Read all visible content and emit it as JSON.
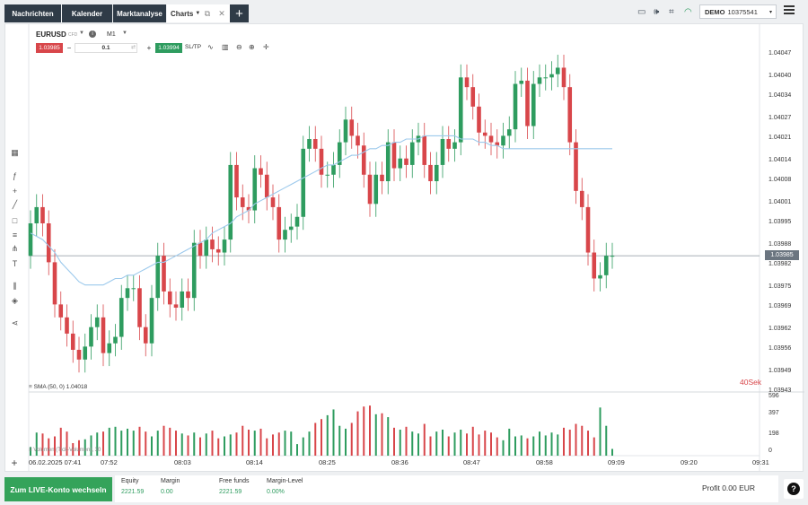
{
  "tabs": [
    {
      "label": "Nachrichten"
    },
    {
      "label": "Kalender"
    },
    {
      "label": "Marktanalyse"
    },
    {
      "label": "Charts"
    }
  ],
  "account": {
    "mode": "DEMO",
    "number": "10375541"
  },
  "chart": {
    "symbol": "EURUSD",
    "symbol_type": "CFD",
    "timeframe": "M1",
    "sell_price": "1.03985",
    "buy_price": "1.03994",
    "volume": "0.1",
    "sltp_label": "SL/TP",
    "current_price": "1.03985",
    "countdown": "40Sek",
    "sma_label": "SMA (50, 0) 1.04018",
    "volume_label": "Volumen (Tick-Volumen), 30",
    "price_axis": [
      "1.04047",
      "1.04040",
      "1.04034",
      "1.04027",
      "1.04021",
      "1.04014",
      "1.04008",
      "1.04001",
      "1.03995",
      "1.03988",
      "1.03982",
      "1.03975",
      "1.03969",
      "1.03962",
      "1.03956",
      "1.03949",
      "1.03943"
    ],
    "volume_axis": [
      "596",
      "397",
      "198",
      "0"
    ],
    "time_axis": [
      "06.02.2025 07:41",
      "07:52",
      "08:03",
      "08:14",
      "08:25",
      "08:36",
      "08:47",
      "08:58",
      "09:09",
      "09:20",
      "09:31"
    ],
    "colors": {
      "up": "#2e9c5f",
      "down": "#d8464a",
      "sma": "#9cc9ec"
    }
  },
  "chart_data": {
    "type": "candlestick",
    "xlabel": "",
    "ylabel": "",
    "ylim": [
      1.03943,
      1.0405
    ],
    "x": [
      "07:41",
      "07:42",
      "07:43",
      "07:44",
      "07:45",
      "07:46",
      "07:47",
      "07:48",
      "07:49",
      "07:50",
      "07:51",
      "07:52",
      "07:53",
      "07:54",
      "07:55",
      "07:56",
      "07:57",
      "07:58",
      "07:59",
      "08:00",
      "08:01",
      "08:02",
      "08:03",
      "08:04",
      "08:05",
      "08:06",
      "08:07",
      "08:08",
      "08:09",
      "08:10",
      "08:11",
      "08:12",
      "08:13",
      "08:14",
      "08:15",
      "08:16",
      "08:17",
      "08:18",
      "08:19",
      "08:20",
      "08:21",
      "08:22",
      "08:23",
      "08:24",
      "08:25",
      "08:26",
      "08:27",
      "08:28",
      "08:29",
      "08:30",
      "08:31",
      "08:32",
      "08:33",
      "08:34",
      "08:35",
      "08:36",
      "08:37",
      "08:38",
      "08:39",
      "08:40",
      "08:41",
      "08:42",
      "08:43",
      "08:44",
      "08:45",
      "08:46",
      "08:47",
      "08:48",
      "08:49",
      "08:50",
      "08:51",
      "08:52",
      "08:53",
      "08:54",
      "08:55",
      "08:56",
      "08:57",
      "08:58",
      "08:59",
      "09:00",
      "09:01",
      "09:02",
      "09:03",
      "09:04",
      "09:05",
      "09:06",
      "09:07",
      "09:08",
      "09:09",
      "09:10",
      "09:11",
      "09:12",
      "09:13",
      "09:14",
      "09:15",
      "09:16",
      "09:17"
    ],
    "open": [
      1.03985,
      1.03995,
      1.04,
      1.03995,
      1.03983,
      1.0397,
      1.03966,
      1.03961,
      1.03956,
      1.03953,
      1.03957,
      1.03963,
      1.03966,
      1.03955,
      1.03958,
      1.0396,
      1.03972,
      1.03975,
      1.03975,
      1.03963,
      1.03958,
      1.03972,
      1.03985,
      1.03974,
      1.0397,
      1.03969,
      1.03974,
      1.03972,
      1.03989,
      1.03985,
      1.0399,
      1.03987,
      1.03986,
      1.0399,
      1.04013,
      1.04003,
      1.04,
      1.03999,
      1.04012,
      1.0401,
      1.04003,
      1.04,
      1.0399,
      1.03993,
      1.03994,
      1.03997,
      1.04018,
      1.04021,
      1.04018,
      1.0401,
      1.0401,
      1.04013,
      1.0402,
      1.04027,
      1.04022,
      1.04019,
      1.0401,
      1.04001,
      1.0401,
      1.04008,
      1.0402,
      1.04012,
      1.04015,
      1.04013,
      1.0402,
      1.04022,
      1.04013,
      1.04008,
      1.04013,
      1.04021,
      1.04018,
      1.0402,
      1.0404,
      1.04037,
      1.04031,
      1.04023,
      1.04022,
      1.0402,
      1.04019,
      1.04022,
      1.04024,
      1.04038,
      1.04039,
      1.04025,
      1.04038,
      1.0404,
      1.0404,
      1.04041,
      1.04043,
      1.04037,
      1.0402,
      1.04005,
      1.04,
      1.03986,
      1.03978,
      1.03979,
      1.03985
    ],
    "close": [
      1.03995,
      1.04,
      1.03995,
      1.03983,
      1.0397,
      1.03966,
      1.03961,
      1.03956,
      1.03953,
      1.03957,
      1.03963,
      1.03966,
      1.03955,
      1.03958,
      1.0396,
      1.03972,
      1.03975,
      1.03975,
      1.03963,
      1.03958,
      1.03972,
      1.03985,
      1.03974,
      1.0397,
      1.03969,
      1.03974,
      1.03972,
      1.03989,
      1.03985,
      1.0399,
      1.03987,
      1.03986,
      1.0399,
      1.04013,
      1.04003,
      1.04,
      1.03999,
      1.04012,
      1.0401,
      1.04003,
      1.04,
      1.0399,
      1.03993,
      1.03994,
      1.03997,
      1.04018,
      1.04021,
      1.04018,
      1.0401,
      1.0401,
      1.04013,
      1.0402,
      1.04027,
      1.04022,
      1.04019,
      1.0401,
      1.04001,
      1.0401,
      1.04008,
      1.0402,
      1.04012,
      1.04015,
      1.04013,
      1.0402,
      1.04022,
      1.04013,
      1.04008,
      1.04013,
      1.04021,
      1.04018,
      1.0402,
      1.0404,
      1.04037,
      1.04031,
      1.04023,
      1.04022,
      1.0402,
      1.04019,
      1.04022,
      1.04024,
      1.04038,
      1.04039,
      1.04025,
      1.04038,
      1.0404,
      1.0404,
      1.04041,
      1.04043,
      1.04037,
      1.0402,
      1.04005,
      1.04,
      1.03986,
      1.03978,
      1.03979,
      1.03985,
      1.03985
    ],
    "sma": [
      1.03992,
      1.03991,
      1.0399,
      1.03988,
      1.03986,
      1.03983,
      1.03981,
      1.03979,
      1.03977,
      1.03976,
      1.03976,
      1.03976,
      1.03976,
      1.03977,
      1.03978,
      1.03978,
      1.03979,
      1.03979,
      1.0398,
      1.03981,
      1.03982,
      1.03983,
      1.03983,
      1.03984,
      1.03985,
      1.03986,
      1.03987,
      1.03988,
      1.03989,
      1.0399,
      1.03992,
      1.03993,
      1.03994,
      1.03995,
      1.03997,
      1.03998,
      1.03999,
      1.04001,
      1.04002,
      1.04003,
      1.04004,
      1.04005,
      1.04006,
      1.04007,
      1.04008,
      1.04009,
      1.0401,
      1.04011,
      1.04012,
      1.04013,
      1.04013,
      1.04014,
      1.04015,
      1.04016,
      1.04016,
      1.04017,
      1.04018,
      1.04018,
      1.04019,
      1.04019,
      1.0402,
      1.0402,
      1.04021,
      1.04021,
      1.04021,
      1.04022,
      1.04022,
      1.04022,
      1.04022,
      1.04022,
      1.04022,
      1.04021,
      1.04021,
      1.04021,
      1.0402,
      1.0402,
      1.04019,
      1.04019,
      1.04018,
      1.04018,
      1.04018,
      1.04018,
      1.04018,
      1.04018,
      1.04018,
      1.04018,
      1.04018,
      1.04018,
      1.04018,
      1.04018,
      1.04018,
      1.04018,
      1.04018,
      1.04018,
      1.04018,
      1.04018,
      1.04018
    ],
    "volume": [
      90,
      240,
      230,
      180,
      200,
      290,
      250,
      130,
      160,
      170,
      210,
      240,
      250,
      290,
      300,
      260,
      280,
      260,
      300,
      250,
      200,
      260,
      310,
      290,
      260,
      230,
      210,
      240,
      190,
      230,
      260,
      180,
      200,
      220,
      240,
      310,
      270,
      260,
      280,
      180,
      220,
      240,
      260,
      250,
      120,
      190,
      250,
      340,
      380,
      420,
      480,
      310,
      280,
      340,
      460,
      510,
      520,
      430,
      440,
      400,
      290,
      270,
      300,
      250,
      230,
      330,
      200,
      250,
      270,
      200,
      240,
      270,
      230,
      300,
      220,
      260,
      240,
      190,
      160,
      280,
      200,
      210,
      180,
      200,
      250,
      210,
      240,
      220,
      290,
      270,
      330,
      310,
      260,
      190,
      500,
      310,
      70
    ]
  },
  "bottom": {
    "live_button": "Zum LIVE-Konto wechseln",
    "equity_label": "Equity",
    "equity_value": "2221.59",
    "margin_label": "Margin",
    "margin_value": "0.00",
    "free_funds_label": "Free funds",
    "free_funds_value": "2221.59",
    "margin_level_label": "Margin-Level",
    "margin_level_value": "0.00%",
    "profit": "Profit 0.00 EUR"
  }
}
